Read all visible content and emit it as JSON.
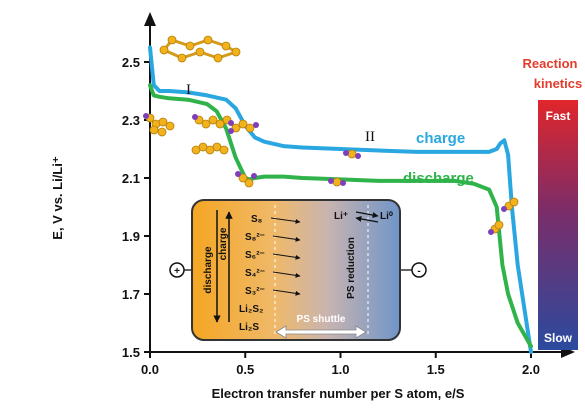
{
  "chart_data": {
    "type": "line",
    "xlabel": "Electron transfer number per S atom, e/S",
    "ylabel": "E, V vs. Li/Li⁺",
    "xlim": [
      0,
      2.1
    ],
    "ylim": [
      1.5,
      2.6
    ],
    "x_ticks": [
      "0.0",
      "0.5",
      "1.0",
      "1.5",
      "2.0"
    ],
    "y_ticks": [
      "1.5",
      "1.7",
      "1.9",
      "2.1",
      "2.3",
      "2.5"
    ],
    "grid": false,
    "series": [
      {
        "name": "charge",
        "color": "#2aa7e0",
        "x": [
          0.0,
          0.02,
          0.05,
          0.1,
          0.2,
          0.3,
          0.4,
          0.45,
          0.5,
          0.55,
          0.6,
          0.7,
          0.8,
          1.0,
          1.2,
          1.4,
          1.6,
          1.7,
          1.78,
          1.82,
          1.84,
          1.86,
          1.88,
          1.9,
          1.93,
          2.0
        ],
        "y": [
          2.55,
          2.42,
          2.4,
          2.4,
          2.395,
          2.385,
          2.37,
          2.34,
          2.28,
          2.24,
          2.225,
          2.21,
          2.205,
          2.2,
          2.195,
          2.19,
          2.19,
          2.19,
          2.19,
          2.2,
          2.22,
          2.23,
          2.18,
          2.0,
          1.8,
          1.5
        ]
      },
      {
        "name": "discharge",
        "color": "#2fb34a",
        "x": [
          0.0,
          0.02,
          0.05,
          0.1,
          0.2,
          0.3,
          0.35,
          0.4,
          0.45,
          0.5,
          0.52,
          0.55,
          0.6,
          0.7,
          0.8,
          1.0,
          1.2,
          1.4,
          1.6,
          1.7,
          1.78,
          1.82,
          1.85,
          1.88,
          1.93,
          2.0
        ],
        "y": [
          2.42,
          2.385,
          2.38,
          2.375,
          2.37,
          2.355,
          2.33,
          2.27,
          2.17,
          2.1,
          2.095,
          2.1,
          2.105,
          2.105,
          2.1,
          2.095,
          2.09,
          2.09,
          2.09,
          2.08,
          2.06,
          2.0,
          1.8,
          1.7,
          1.6,
          1.52
        ]
      }
    ],
    "annotations": {
      "stage_1": "I",
      "stage_2": "II",
      "charge_label": "charge",
      "discharge_label": "discharge"
    },
    "inset": {
      "discharge": "discharge",
      "charge": "charge",
      "species": [
        "S₈",
        "S₈²⁻",
        "S₆²⁻",
        "S₄²⁻",
        "S₃²⁻",
        "Li₂S₂",
        "Li₂S"
      ],
      "li_ion": "Li⁺",
      "li_metal": "Li⁰",
      "reduction": "PS reduction",
      "shuttle": "PS shuttle",
      "plus": "+",
      "minus": "-"
    },
    "kinetics": {
      "title_line1": "Reaction",
      "title_line2": "kinetics",
      "fast": "Fast",
      "slow": "Slow",
      "color_top": "#e0262b",
      "color_bottom": "#2b4a9e"
    }
  }
}
